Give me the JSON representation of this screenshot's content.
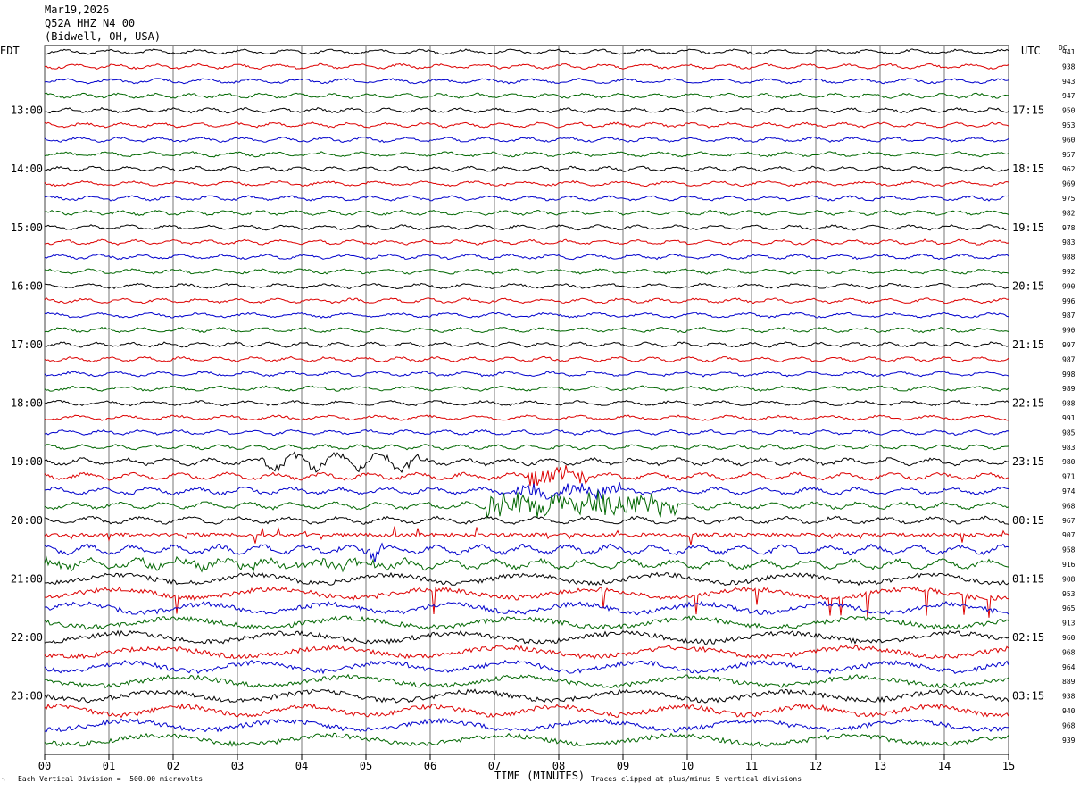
{
  "header": {
    "date": "Mar19,2026",
    "station": "Q52A HHZ N4 00",
    "location": "(Bidwell, OH, USA)"
  },
  "left_zone_label": "EDT",
  "right_zone_label": "UTC",
  "dc_label": "DC",
  "footer": {
    "scale_note": "Each Vertical Division =  500.00 microvolts",
    "xlabel": "TIME (MINUTES)",
    "clip_note": "Traces clipped at plus/minus 5 vertical divisions"
  },
  "colors": {
    "trace_cycle": [
      "#000000",
      "#dd0000",
      "#0000cc",
      "#006600"
    ],
    "grid": "#000000"
  },
  "chart_data": {
    "type": "line",
    "subtype": "helicorder",
    "x": {
      "min": 0,
      "max": 15,
      "unit": "minutes",
      "ticks": [
        "00",
        "01",
        "02",
        "03",
        "04",
        "05",
        "06",
        "07",
        "08",
        "09",
        "10",
        "11",
        "12",
        "13",
        "14",
        "15"
      ]
    },
    "rows_per_hour": 4,
    "row_count": 48,
    "left_hour_labels": [
      "13:00",
      "14:00",
      "15:00",
      "16:00",
      "17:00",
      "18:00",
      "19:00",
      "20:00",
      "21:00",
      "22:00",
      "23:00"
    ],
    "right_hour_labels": [
      "17:15",
      "18:15",
      "19:15",
      "20:15",
      "21:15",
      "22:15",
      "23:15",
      "00:15",
      "01:15",
      "02:15",
      "03:15"
    ],
    "dc_offsets": [
      941,
      938,
      943,
      947,
      950,
      953,
      960,
      957,
      962,
      969,
      975,
      982,
      978,
      983,
      988,
      992,
      990,
      996,
      987,
      990,
      997,
      987,
      998,
      989,
      988,
      991,
      985,
      983,
      980,
      971,
      974,
      968,
      967,
      907,
      958,
      916,
      908,
      953,
      965,
      913,
      960,
      968,
      964,
      889,
      938,
      940,
      968,
      939
    ],
    "grid": true
  }
}
